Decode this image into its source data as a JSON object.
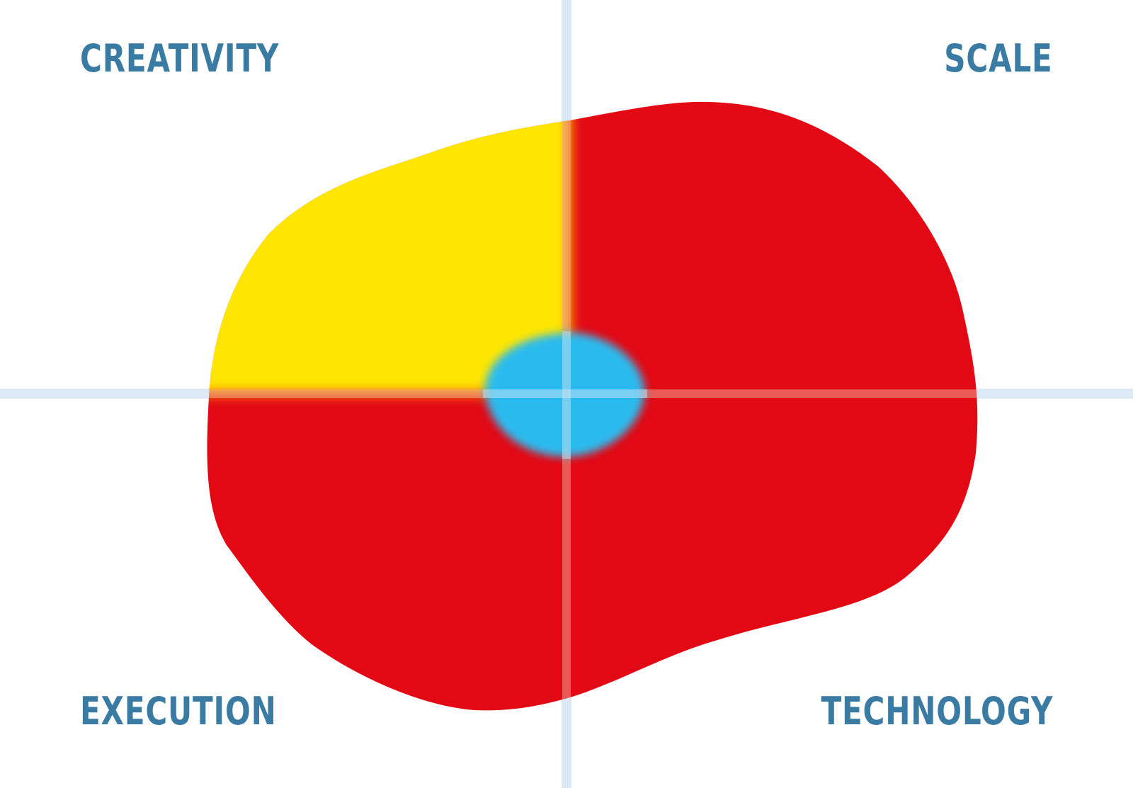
{
  "quadrants": {
    "top_left": "CREATIVITY",
    "top_right": "SCALE",
    "bottom_left": "EXECUTION",
    "bottom_right": "TECHNOLOGY"
  },
  "colors": {
    "background": "#ffffff",
    "label": "#3a7ba3",
    "axis": "#dce9f6",
    "blob_main": "#e20814",
    "blob_creativity": "#ffe600",
    "center_spot": "#2bbbee",
    "axis_overlay": "#f3a08a"
  }
}
